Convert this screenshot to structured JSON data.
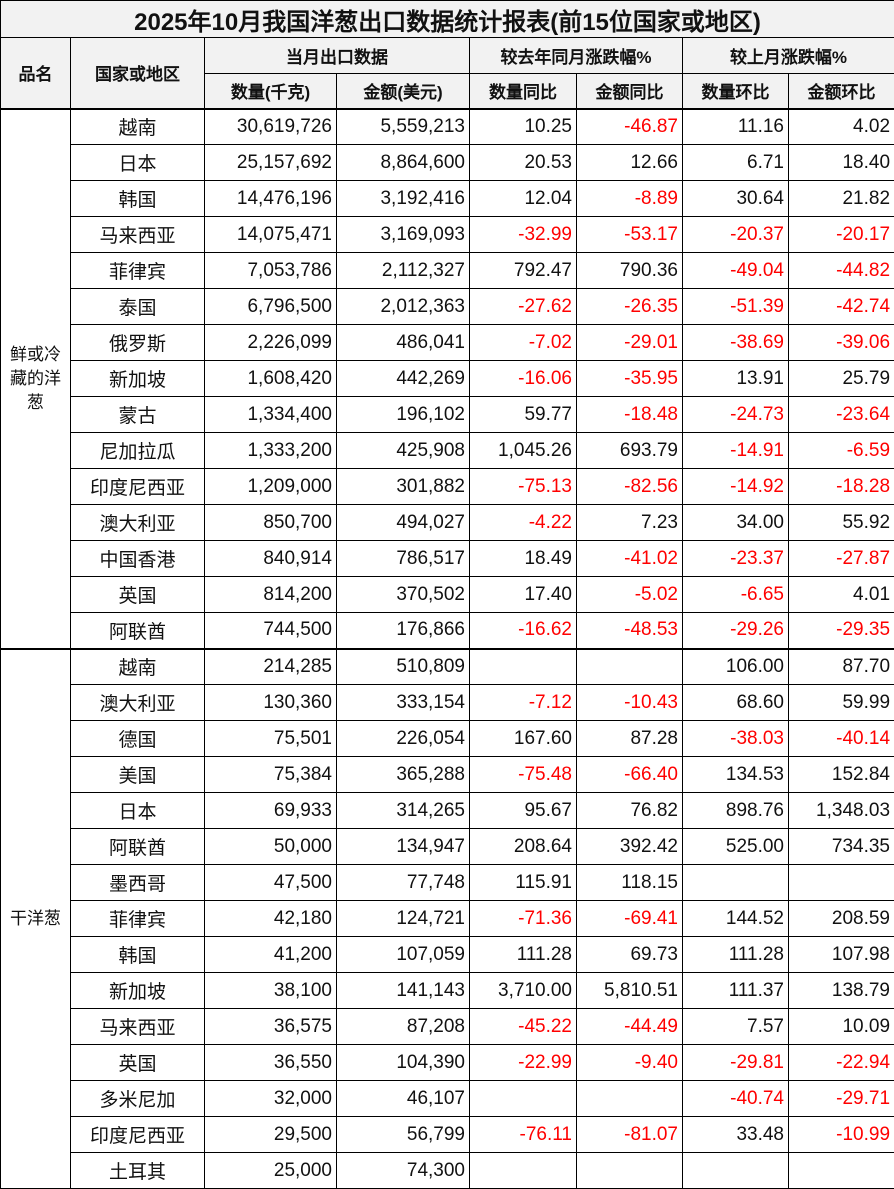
{
  "title": "2025年10月我国洋葱出口数据统计报表(前15位国家或地区)",
  "headers": {
    "product": "品名",
    "country": "国家或地区",
    "current_month": "当月出口数据",
    "yoy": "较去年同月涨跌幅%",
    "mom": "较上月涨跌幅%",
    "qty": "数量(千克)",
    "amount": "金额(美元)",
    "qty_yoy": "数量同比",
    "amount_yoy": "金额同比",
    "qty_mom": "数量环比",
    "amount_mom": "金额环比"
  },
  "colors": {
    "negative": "#ff0000",
    "header_bg": "#f2f2f2"
  },
  "groups": [
    {
      "name": "鲜或冷藏的洋葱",
      "rows": [
        [
          "越南",
          "30,619,726",
          "5,559,213",
          "10.25",
          "-46.87",
          "11.16",
          "4.02"
        ],
        [
          "日本",
          "25,157,692",
          "8,864,600",
          "20.53",
          "12.66",
          "6.71",
          "18.40"
        ],
        [
          "韩国",
          "14,476,196",
          "3,192,416",
          "12.04",
          "-8.89",
          "30.64",
          "21.82"
        ],
        [
          "马来西亚",
          "14,075,471",
          "3,169,093",
          "-32.99",
          "-53.17",
          "-20.37",
          "-20.17"
        ],
        [
          "菲律宾",
          "7,053,786",
          "2,112,327",
          "792.47",
          "790.36",
          "-49.04",
          "-44.82"
        ],
        [
          "泰国",
          "6,796,500",
          "2,012,363",
          "-27.62",
          "-26.35",
          "-51.39",
          "-42.74"
        ],
        [
          "俄罗斯",
          "2,226,099",
          "486,041",
          "-7.02",
          "-29.01",
          "-38.69",
          "-39.06"
        ],
        [
          "新加坡",
          "1,608,420",
          "442,269",
          "-16.06",
          "-35.95",
          "13.91",
          "25.79"
        ],
        [
          "蒙古",
          "1,334,400",
          "196,102",
          "59.77",
          "-18.48",
          "-24.73",
          "-23.64"
        ],
        [
          "尼加拉瓜",
          "1,333,200",
          "425,908",
          "1,045.26",
          "693.79",
          "-14.91",
          "-6.59"
        ],
        [
          "印度尼西亚",
          "1,209,000",
          "301,882",
          "-75.13",
          "-82.56",
          "-14.92",
          "-18.28"
        ],
        [
          "澳大利亚",
          "850,700",
          "494,027",
          "-4.22",
          "7.23",
          "34.00",
          "55.92"
        ],
        [
          "中国香港",
          "840,914",
          "786,517",
          "18.49",
          "-41.02",
          "-23.37",
          "-27.87"
        ],
        [
          "英国",
          "814,200",
          "370,502",
          "17.40",
          "-5.02",
          "-6.65",
          "4.01"
        ],
        [
          "阿联酋",
          "744,500",
          "176,866",
          "-16.62",
          "-48.53",
          "-29.26",
          "-29.35"
        ]
      ]
    },
    {
      "name": "干洋葱",
      "rows": [
        [
          "越南",
          "214,285",
          "510,809",
          "",
          "",
          "106.00",
          "87.70"
        ],
        [
          "澳大利亚",
          "130,360",
          "333,154",
          "-7.12",
          "-10.43",
          "68.60",
          "59.99"
        ],
        [
          "德国",
          "75,501",
          "226,054",
          "167.60",
          "87.28",
          "-38.03",
          "-40.14"
        ],
        [
          "美国",
          "75,384",
          "365,288",
          "-75.48",
          "-66.40",
          "134.53",
          "152.84"
        ],
        [
          "日本",
          "69,933",
          "314,265",
          "95.67",
          "76.82",
          "898.76",
          "1,348.03"
        ],
        [
          "阿联酋",
          "50,000",
          "134,947",
          "208.64",
          "392.42",
          "525.00",
          "734.35"
        ],
        [
          "墨西哥",
          "47,500",
          "77,748",
          "115.91",
          "118.15",
          "",
          ""
        ],
        [
          "菲律宾",
          "42,180",
          "124,721",
          "-71.36",
          "-69.41",
          "144.52",
          "208.59"
        ],
        [
          "韩国",
          "41,200",
          "107,059",
          "111.28",
          "69.73",
          "111.28",
          "107.98"
        ],
        [
          "新加坡",
          "38,100",
          "141,143",
          "3,710.00",
          "5,810.51",
          "111.37",
          "138.79"
        ],
        [
          "马来西亚",
          "36,575",
          "87,208",
          "-45.22",
          "-44.49",
          "7.57",
          "10.09"
        ],
        [
          "英国",
          "36,550",
          "104,390",
          "-22.99",
          "-9.40",
          "-29.81",
          "-22.94"
        ],
        [
          "多米尼加",
          "32,000",
          "46,107",
          "",
          "",
          "-40.74",
          "-29.71"
        ],
        [
          "印度尼西亚",
          "29,500",
          "56,799",
          "-76.11",
          "-81.07",
          "33.48",
          "-10.99"
        ],
        [
          "土耳其",
          "25,000",
          "74,300",
          "",
          "",
          "",
          ""
        ]
      ]
    }
  ]
}
